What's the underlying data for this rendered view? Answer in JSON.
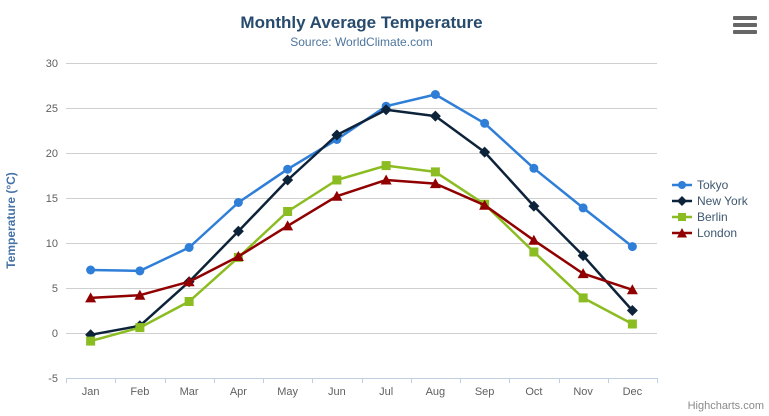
{
  "header": {
    "title": "Monthly Average Temperature",
    "subtitle": "Source: WorldClimate.com"
  },
  "credit_label": "Highcharts.com",
  "colors": {
    "title_text": "#274b6d",
    "subtitle_text": "#4d759e",
    "axis_label": "#606060",
    "axis_title": "#4572a7",
    "gridline": "#cfcfcf",
    "xaxis_line": "#c0d0e0",
    "legend_text": "#3e576f",
    "menu_icon": "#666666",
    "credit_text": "#8a8a8a"
  },
  "chart_data": {
    "type": "line",
    "title": "Monthly Average Temperature",
    "subtitle": "Source: WorldClimate.com",
    "categories": [
      "Jan",
      "Feb",
      "Mar",
      "Apr",
      "May",
      "Jun",
      "Jul",
      "Aug",
      "Sep",
      "Oct",
      "Nov",
      "Dec"
    ],
    "xlabel": "",
    "ylabel": "Temperature (°C)",
    "ylim": [
      -5,
      30
    ],
    "ytick_interval": 5,
    "yticks": [
      -5,
      0,
      5,
      10,
      15,
      20,
      25,
      30
    ],
    "grid": true,
    "legend_position": "right",
    "series": [
      {
        "name": "Tokyo",
        "color": "#2f7ed8",
        "marker": "circle",
        "values": [
          7.0,
          6.9,
          9.5,
          14.5,
          18.2,
          21.5,
          25.2,
          26.5,
          23.3,
          18.3,
          13.9,
          9.6
        ]
      },
      {
        "name": "New York",
        "color": "#0d233a",
        "marker": "diamond",
        "values": [
          -0.2,
          0.8,
          5.7,
          11.3,
          17.0,
          22.0,
          24.8,
          24.1,
          20.1,
          14.1,
          8.6,
          2.5
        ]
      },
      {
        "name": "Berlin",
        "color": "#8bbc21",
        "marker": "square",
        "values": [
          -0.9,
          0.6,
          3.5,
          8.4,
          13.5,
          17.0,
          18.6,
          17.9,
          14.3,
          9.0,
          3.9,
          1.0
        ]
      },
      {
        "name": "London",
        "color": "#910000",
        "marker": "triangle",
        "values": [
          3.9,
          4.2,
          5.7,
          8.5,
          11.9,
          15.2,
          17.0,
          16.6,
          14.2,
          10.3,
          6.6,
          4.8
        ]
      }
    ]
  }
}
